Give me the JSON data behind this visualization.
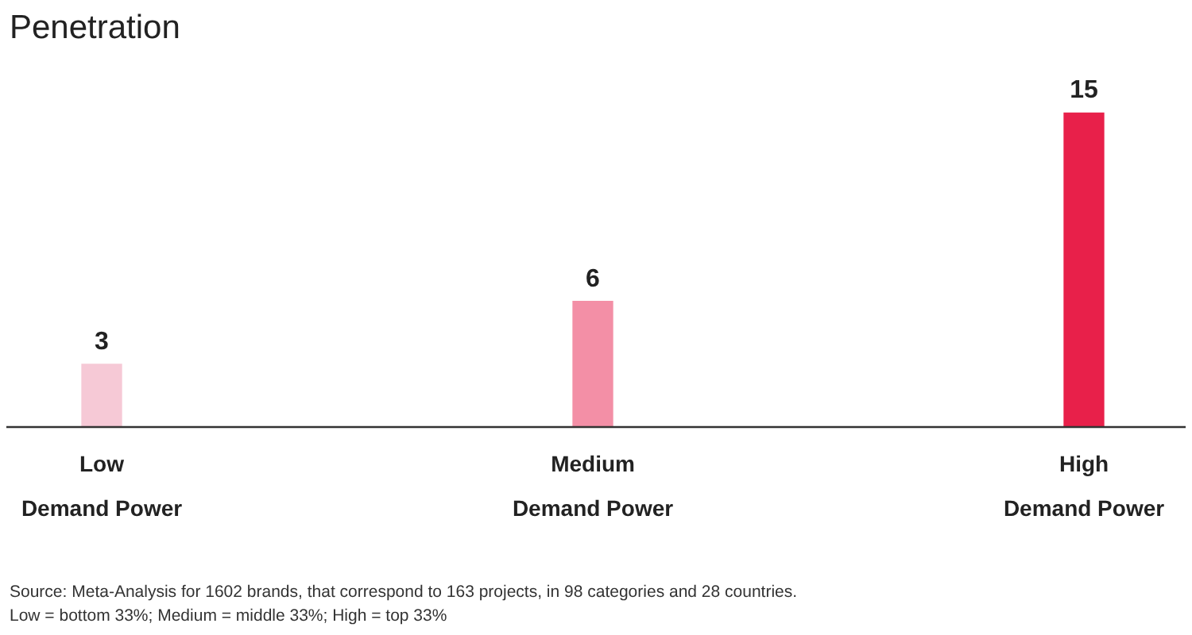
{
  "chart_data": {
    "type": "bar",
    "title": "Penetration",
    "categories": [
      "Low\nDemand Power",
      "Medium\nDemand Power",
      "High\nDemand Power"
    ],
    "values": [
      3,
      6,
      15
    ],
    "colors": [
      "#f6c9d6",
      "#f38fa6",
      "#e8204a"
    ],
    "data_labels": true,
    "grid": false,
    "legend": false,
    "tick_labels": "x",
    "annotations": [
      "Source: Meta-Analysis for 1602 brands, that correspond to 163 projects, in 98 categories and 28 countries.",
      "Low = bottom 33%; Medium = middle 33%; High = top 33%"
    ]
  }
}
